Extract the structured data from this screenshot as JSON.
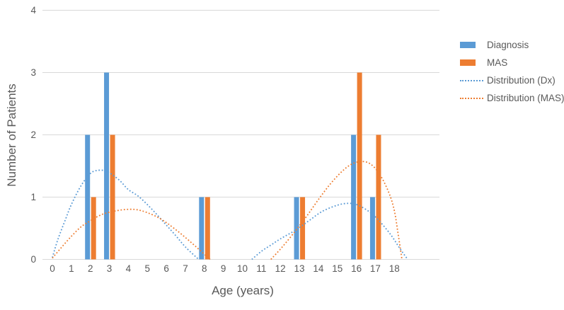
{
  "chart_data": {
    "type": "bar",
    "subtype": "clustered-bars-with-dotted-distribution-curves",
    "title": "",
    "xlabel": "Age (years)",
    "ylabel": "Number of Patients",
    "ylim": [
      0,
      4
    ],
    "yticks": [
      0,
      1,
      2,
      3,
      4
    ],
    "categories": [
      0,
      1,
      2,
      3,
      4,
      5,
      6,
      7,
      8,
      9,
      10,
      11,
      12,
      13,
      14,
      15,
      16,
      17,
      18
    ],
    "grid": true,
    "legend_position": "right",
    "axis_color": "#d9d9d9",
    "text_color": "#595959",
    "series": [
      {
        "name": "Diagnosis",
        "type": "bar",
        "color": "#5b9bd5",
        "values": [
          0,
          0,
          2,
          3,
          0,
          0,
          0,
          0,
          1,
          0,
          0,
          0,
          0,
          1,
          0,
          0,
          2,
          1,
          0
        ]
      },
      {
        "name": "MAS",
        "type": "bar",
        "color": "#ed7d31",
        "values": [
          0,
          0,
          1,
          2,
          0,
          0,
          0,
          0,
          1,
          0,
          0,
          0,
          0,
          1,
          0,
          0,
          3,
          2,
          0
        ]
      },
      {
        "name": "Distribution (Dx)",
        "type": "dotted-curve",
        "color": "#5b9bd5",
        "segments": [
          [
            [
              0.0,
              0.03
            ],
            [
              0.3,
              0.33
            ],
            [
              0.7,
              0.65
            ],
            [
              1.0,
              0.88
            ],
            [
              1.5,
              1.18
            ],
            [
              2.0,
              1.38
            ],
            [
              2.4,
              1.43
            ],
            [
              2.8,
              1.42
            ],
            [
              3.2,
              1.35
            ],
            [
              3.6,
              1.25
            ],
            [
              4.0,
              1.12
            ],
            [
              4.5,
              1.02
            ],
            [
              5.0,
              0.88
            ],
            [
              5.5,
              0.72
            ],
            [
              6.0,
              0.55
            ],
            [
              6.5,
              0.38
            ],
            [
              7.0,
              0.2
            ],
            [
              7.7,
              0.0
            ]
          ],
          [
            [
              10.5,
              0.0
            ],
            [
              11.0,
              0.13
            ],
            [
              11.5,
              0.23
            ],
            [
              12.0,
              0.33
            ],
            [
              12.8,
              0.47
            ],
            [
              13.5,
              0.62
            ],
            [
              14.2,
              0.77
            ],
            [
              15.0,
              0.87
            ],
            [
              15.6,
              0.9
            ],
            [
              16.1,
              0.87
            ],
            [
              16.7,
              0.76
            ],
            [
              17.2,
              0.62
            ],
            [
              17.8,
              0.4
            ],
            [
              18.3,
              0.17
            ],
            [
              18.7,
              0.0
            ]
          ]
        ]
      },
      {
        "name": "Distribution (MAS)",
        "type": "dotted-curve",
        "color": "#ed7d31",
        "segments": [
          [
            [
              0.0,
              0.02
            ],
            [
              0.5,
              0.2
            ],
            [
              1.0,
              0.37
            ],
            [
              1.5,
              0.52
            ],
            [
              2.0,
              0.62
            ],
            [
              2.6,
              0.72
            ],
            [
              3.2,
              0.77
            ],
            [
              3.8,
              0.8
            ],
            [
              4.4,
              0.8
            ],
            [
              5.0,
              0.75
            ],
            [
              5.7,
              0.65
            ],
            [
              6.4,
              0.5
            ],
            [
              7.2,
              0.3
            ],
            [
              8.3,
              0.0
            ]
          ],
          [
            [
              11.5,
              0.0
            ],
            [
              12.1,
              0.2
            ],
            [
              12.8,
              0.46
            ],
            [
              13.4,
              0.7
            ],
            [
              14.0,
              0.96
            ],
            [
              14.6,
              1.2
            ],
            [
              15.2,
              1.4
            ],
            [
              15.7,
              1.52
            ],
            [
              16.2,
              1.57
            ],
            [
              16.7,
              1.54
            ],
            [
              17.2,
              1.38
            ],
            [
              17.7,
              1.08
            ],
            [
              18.0,
              0.78
            ],
            [
              18.2,
              0.4
            ],
            [
              18.4,
              0.0
            ]
          ]
        ]
      }
    ]
  }
}
